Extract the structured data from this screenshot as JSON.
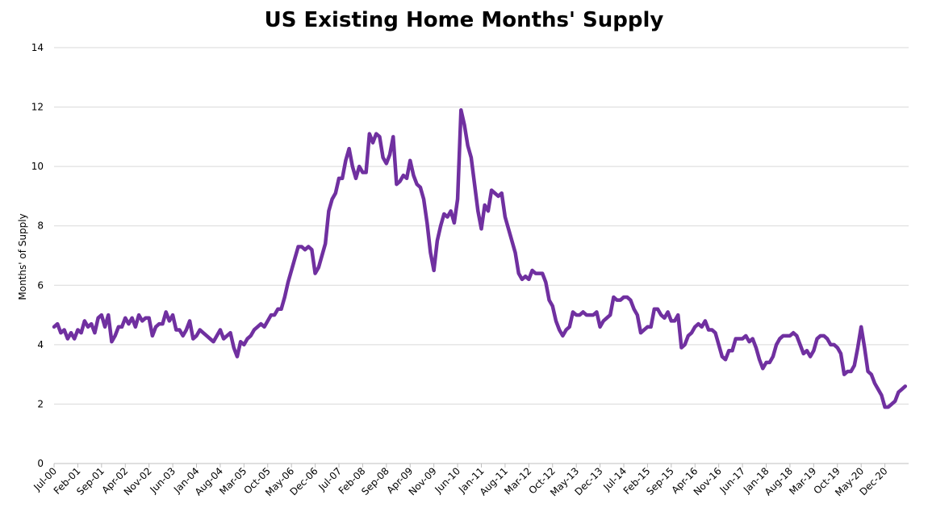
{
  "chart_data": {
    "type": "line",
    "title": "US Existing Home Months' Supply",
    "ylabel": "Months' of Supply",
    "xlabel": "",
    "ylim": [
      0,
      14
    ],
    "yticks": [
      0,
      2,
      4,
      6,
      8,
      10,
      12,
      14
    ],
    "grid": "horizontal",
    "line_color": "#7030A0",
    "x_start": "Jul-00",
    "x_tick_labels": [
      "Jul-00",
      "Feb-01",
      "Sep-01",
      "Apr-02",
      "Nov-02",
      "Jun-03",
      "Jan-04",
      "Aug-04",
      "Mar-05",
      "Oct-05",
      "May-06",
      "Dec-06",
      "Jul-07",
      "Feb-08",
      "Sep-08",
      "Apr-09",
      "Nov-09",
      "Jun-10",
      "Jan-11",
      "Aug-11",
      "Mar-12",
      "Oct-12",
      "May-13",
      "Dec-13",
      "Jul-14",
      "Feb-15",
      "Sep-15",
      "Apr-16",
      "Nov-16",
      "Jun-17",
      "Jan-18",
      "Aug-18",
      "Mar-19",
      "Oct-19",
      "May-20",
      "Dec-20"
    ],
    "series": [
      {
        "values": [
          4.6,
          4.7,
          4.4,
          4.5,
          4.2,
          4.4,
          4.2,
          4.5,
          4.4,
          4.8,
          4.6,
          4.7,
          4.4,
          4.9,
          5.0,
          4.6,
          5.0,
          4.1,
          4.3,
          4.6,
          4.6,
          4.9,
          4.7,
          4.9,
          4.6,
          5.0,
          4.8,
          4.9,
          4.9,
          4.3,
          4.6,
          4.7,
          4.7,
          5.1,
          4.8,
          5.0,
          4.5,
          4.5,
          4.3,
          4.5,
          4.8,
          4.2,
          4.3,
          4.5,
          4.4,
          4.3,
          4.2,
          4.1,
          4.3,
          4.5,
          4.2,
          4.3,
          4.4,
          3.9,
          3.6,
          4.1,
          4.0,
          4.2,
          4.3,
          4.5,
          4.6,
          4.7,
          4.6,
          4.8,
          5.0,
          5.0,
          5.2,
          5.2,
          5.6,
          6.1,
          6.5,
          6.9,
          7.3,
          7.3,
          7.2,
          7.3,
          7.2,
          6.4,
          6.6,
          7.0,
          7.4,
          8.5,
          8.9,
          9.1,
          9.6,
          9.6,
          10.2,
          10.6,
          10.0,
          9.6,
          10.0,
          9.8,
          9.8,
          11.1,
          10.8,
          11.1,
          11.0,
          10.3,
          10.1,
          10.4,
          11.0,
          9.4,
          9.5,
          9.7,
          9.6,
          10.2,
          9.7,
          9.4,
          9.3,
          8.9,
          8.1,
          7.1,
          6.5,
          7.5,
          8.0,
          8.4,
          8.3,
          8.5,
          8.1,
          8.9,
          11.9,
          11.4,
          10.7,
          10.3,
          9.4,
          8.5,
          7.9,
          8.7,
          8.5,
          9.2,
          9.1,
          9.0,
          9.1,
          8.3,
          7.9,
          7.5,
          7.1,
          6.4,
          6.2,
          6.3,
          6.2,
          6.5,
          6.4,
          6.4,
          6.4,
          6.1,
          5.5,
          5.3,
          4.8,
          4.5,
          4.3,
          4.5,
          4.6,
          5.1,
          5.0,
          5.0,
          5.1,
          5.0,
          5.0,
          5.0,
          5.1,
          4.6,
          4.8,
          4.9,
          5.0,
          5.6,
          5.5,
          5.5,
          5.6,
          5.6,
          5.5,
          5.2,
          5.0,
          4.4,
          4.5,
          4.6,
          4.6,
          5.2,
          5.2,
          5.0,
          4.9,
          5.1,
          4.8,
          4.8,
          5.0,
          3.9,
          4.0,
          4.3,
          4.4,
          4.6,
          4.7,
          4.6,
          4.8,
          4.5,
          4.5,
          4.4,
          4.0,
          3.6,
          3.5,
          3.8,
          3.8,
          4.2,
          4.2,
          4.2,
          4.3,
          4.1,
          4.2,
          3.9,
          3.5,
          3.2,
          3.4,
          3.4,
          3.6,
          4.0,
          4.2,
          4.3,
          4.3,
          4.3,
          4.4,
          4.3,
          4.0,
          3.7,
          3.8,
          3.6,
          3.8,
          4.2,
          4.3,
          4.3,
          4.2,
          4.0,
          4.0,
          3.9,
          3.7,
          3.0,
          3.1,
          3.1,
          3.3,
          3.9,
          4.6,
          3.9,
          3.1,
          3.0,
          2.7,
          2.5,
          2.3,
          1.9,
          1.9,
          2.0,
          2.1,
          2.4,
          2.5,
          2.6
        ]
      }
    ]
  }
}
